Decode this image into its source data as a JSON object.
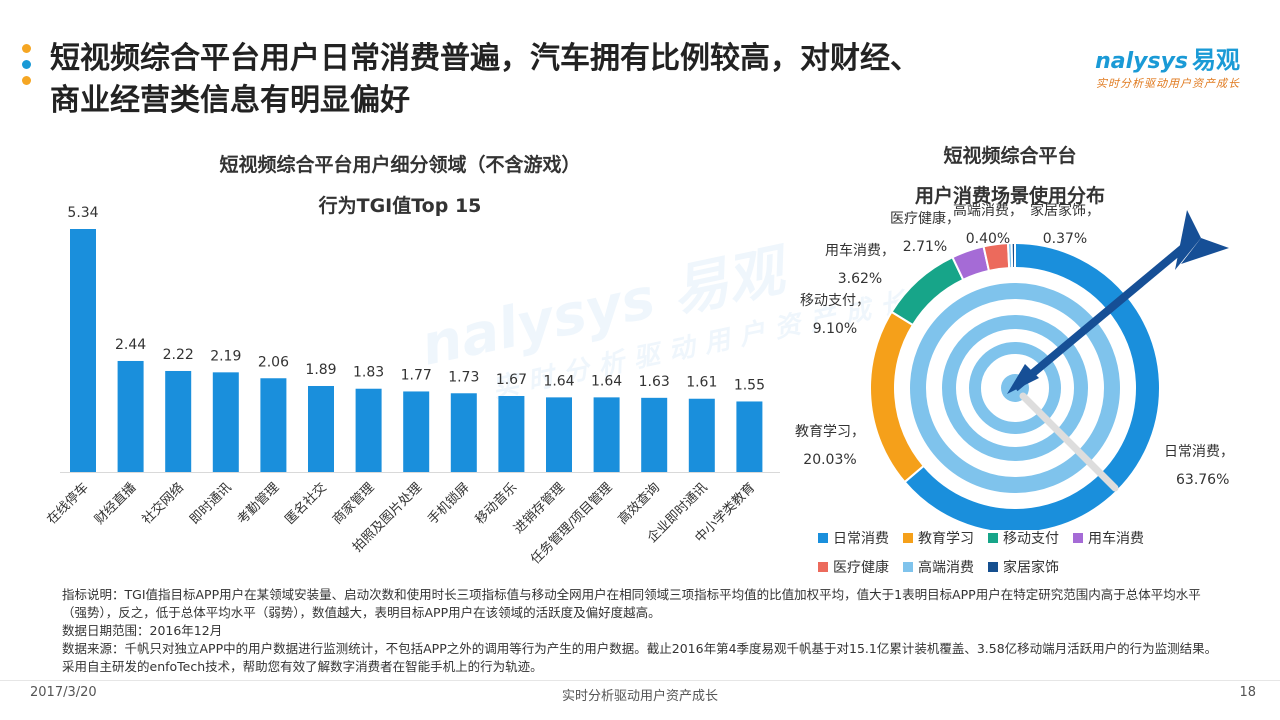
{
  "header": {
    "title_line1": "短视频综合平台用户日常消费普遍，汽车拥有比例较高，对财经、",
    "title_line2": "商业经营类信息有明显偏好",
    "dot_colors": [
      "#f5a623",
      "#1a9ad6",
      "#f5a623"
    ]
  },
  "logo": {
    "brand": "nalysys",
    "brand_cn": "易观",
    "slogan": "实时分析驱动用户资产成长"
  },
  "watermark": {
    "brand": "nalysys 易观",
    "slogan": "实时分析驱动用户资产成长"
  },
  "bar_chart_title": {
    "line1": "短视频综合平台用户细分领域（不含游戏）",
    "line2": "行为TGI值Top 15"
  },
  "pie_chart_title": {
    "line1": "短视频综合平台",
    "line2": "用户消费场景使用分布"
  },
  "chart_data": [
    {
      "type": "bar",
      "title": "短视频综合平台用户细分领域（不含游戏）行为TGI值Top 15",
      "categories": [
        "在线停车",
        "财经直播",
        "社交网络",
        "即时通讯",
        "考勤管理",
        "匿名社交",
        "商家管理",
        "拍照及图片处理",
        "手机锁屏",
        "移动音乐",
        "进销存管理",
        "任务管理/项目管理",
        "高效查询",
        "企业即时通讯",
        "中小学类教育"
      ],
      "values": [
        5.34,
        2.44,
        2.22,
        2.19,
        2.06,
        1.89,
        1.83,
        1.77,
        1.73,
        1.67,
        1.64,
        1.64,
        1.63,
        1.61,
        1.55
      ],
      "ylim": [
        0,
        5.34
      ],
      "color": "#1a8fdc"
    },
    {
      "type": "pie",
      "title": "短视频综合平台用户消费场景使用分布",
      "slices": [
        {
          "name": "日常消费",
          "value": 63.76,
          "label": "63.76%",
          "color": "#1a8fdc"
        },
        {
          "name": "教育学习",
          "value": 20.03,
          "label": "20.03%",
          "color": "#f5a01a"
        },
        {
          "name": "移动支付",
          "value": 9.1,
          "label": "9.10%",
          "color": "#17a589"
        },
        {
          "name": "用车消费",
          "value": 3.62,
          "label": "3.62%",
          "color": "#a56bd6"
        },
        {
          "name": "医疗健康",
          "value": 2.71,
          "label": "2.71%",
          "color": "#ec6a5c"
        },
        {
          "name": "高端消费",
          "value": 0.4,
          "label": "0.40%",
          "color": "#7fc3ec"
        },
        {
          "name": "家居家饰",
          "value": 0.37,
          "label": "0.37%",
          "color": "#154f8f"
        }
      ],
      "legend_position": "bottom"
    }
  ],
  "notes": {
    "indicator": "指标说明：TGI值指目标APP用户在某领域安装量、启动次数和使用时长三项指标值与移动全网用户在相同领域三项指标平均值的比值加权平均，值大于1表明目标APP用户在特定研究范围内高于总体平均水平（强势），反之，低于总体平均水平（弱势），数值越大，表明目标APP用户在该领域的活跃度及偏好度越高。",
    "date_range": "数据日期范围：2016年12月",
    "source": "数据来源：千帆只对独立APP中的用户数据进行监测统计，不包括APP之外的调用等行为产生的用户数据。截止2016年第4季度易观千帆基于对15.1亿累计装机覆盖、3.58亿移动端月活跃用户的行为监测结果。采用自主研发的enfoTech技术，帮助您有效了解数字消费者在智能手机上的行为轨迹。"
  },
  "footer": {
    "date": "2017/3/20",
    "center": "实时分析驱动用户资产成长",
    "page": "18"
  }
}
